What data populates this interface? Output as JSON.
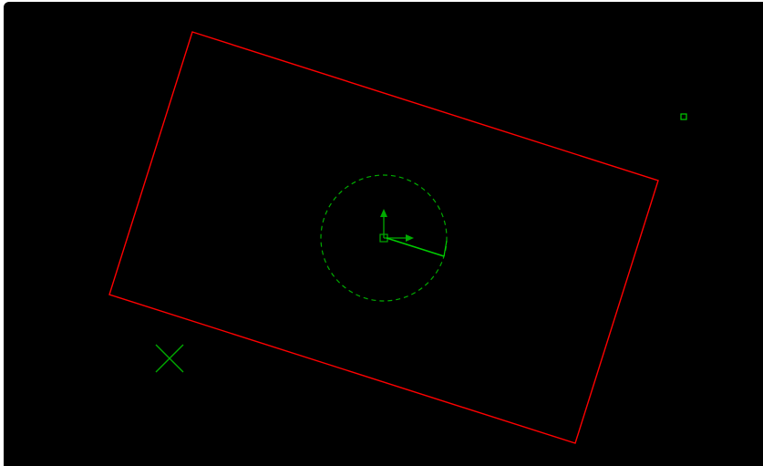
{
  "viewport": {
    "background": "#000000"
  },
  "colors": {
    "boundary": "#ff0000",
    "overlay": "#00aa00",
    "overlay_bright": "#00cc00"
  },
  "icons": {
    "origin": "origin-axes-icon",
    "heading": "heading-line-icon",
    "target": "target-cross-icon",
    "point": "point-marker-icon",
    "radius": "range-circle-icon"
  }
}
